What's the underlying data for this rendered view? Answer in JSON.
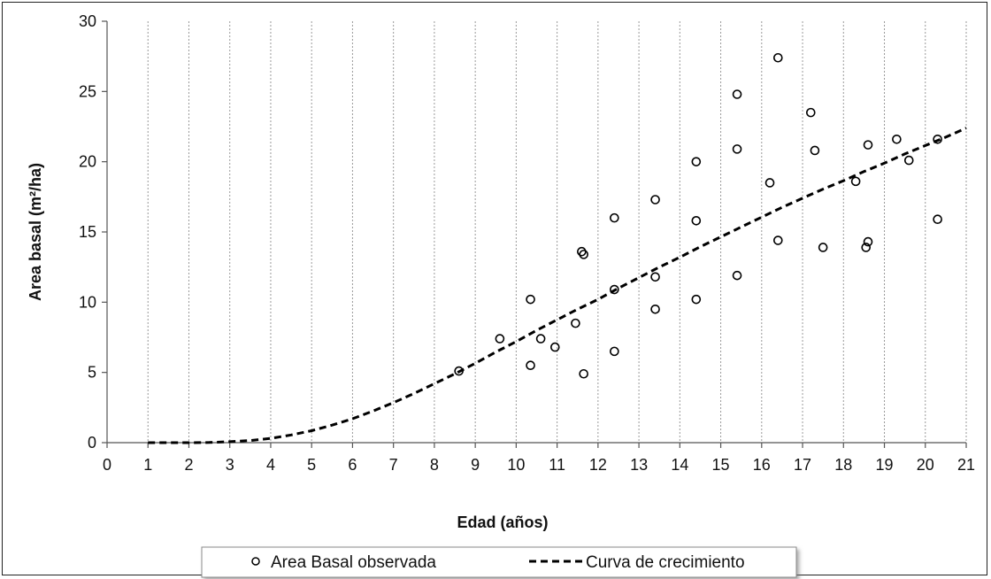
{
  "chart_data": {
    "type": "scatter",
    "xlabel": "Edad (años)",
    "ylabel": "Area basal (m²/ha)",
    "xlim": [
      0,
      21
    ],
    "ylim": [
      0,
      30
    ],
    "x_ticks": [
      "0",
      "1",
      "2",
      "3",
      "4",
      "5",
      "6",
      "7",
      "8",
      "9",
      "10",
      "11",
      "12",
      "13",
      "14",
      "15",
      "16",
      "17",
      "18",
      "19",
      "20",
      "21"
    ],
    "y_ticks": [
      "0",
      "5",
      "10",
      "15",
      "20",
      "25",
      "30"
    ],
    "grid": "vertical dashed",
    "legend_position": "bottom",
    "series": [
      {
        "name": "Area Basal observada",
        "marker": "open-circle",
        "color": "#000000",
        "points": [
          [
            8.6,
            5.1
          ],
          [
            9.6,
            7.4
          ],
          [
            10.35,
            10.2
          ],
          [
            10.35,
            5.5
          ],
          [
            10.6,
            7.4
          ],
          [
            10.95,
            6.8
          ],
          [
            11.45,
            8.5
          ],
          [
            11.6,
            13.6
          ],
          [
            11.65,
            13.4
          ],
          [
            11.65,
            4.9
          ],
          [
            12.4,
            16.0
          ],
          [
            12.4,
            10.9
          ],
          [
            12.4,
            6.5
          ],
          [
            13.4,
            17.3
          ],
          [
            13.4,
            11.8
          ],
          [
            13.4,
            9.5
          ],
          [
            14.4,
            20.0
          ],
          [
            14.4,
            15.8
          ],
          [
            14.4,
            10.2
          ],
          [
            15.4,
            24.8
          ],
          [
            15.4,
            20.9
          ],
          [
            15.4,
            11.9
          ],
          [
            16.2,
            18.5
          ],
          [
            16.4,
            27.4
          ],
          [
            16.4,
            14.4
          ],
          [
            17.2,
            23.5
          ],
          [
            17.3,
            20.8
          ],
          [
            17.5,
            13.9
          ],
          [
            18.3,
            18.6
          ],
          [
            18.55,
            13.9
          ],
          [
            18.6,
            21.2
          ],
          [
            18.6,
            14.3
          ],
          [
            19.3,
            21.6
          ],
          [
            19.6,
            20.1
          ],
          [
            20.3,
            21.6
          ],
          [
            20.3,
            15.9
          ]
        ]
      },
      {
        "name": "Curva de crecimiento",
        "style": "dashed-line",
        "color": "#000000",
        "points": [
          [
            1,
            0.0
          ],
          [
            2,
            0.0
          ],
          [
            2.5,
            0.01
          ],
          [
            3,
            0.07
          ],
          [
            3.5,
            0.15
          ],
          [
            4,
            0.3
          ],
          [
            4.5,
            0.55
          ],
          [
            5,
            0.85
          ],
          [
            5.5,
            1.25
          ],
          [
            6,
            1.7
          ],
          [
            6.5,
            2.25
          ],
          [
            7,
            2.85
          ],
          [
            7.5,
            3.5
          ],
          [
            8,
            4.2
          ],
          [
            8.5,
            4.9
          ],
          [
            9,
            5.65
          ],
          [
            9.5,
            6.45
          ],
          [
            10,
            7.2
          ],
          [
            10.5,
            8.0
          ],
          [
            11,
            8.75
          ],
          [
            11.5,
            9.5
          ],
          [
            12,
            10.2
          ],
          [
            12.5,
            11.0
          ],
          [
            13,
            11.75
          ],
          [
            13.5,
            12.5
          ],
          [
            14,
            13.2
          ],
          [
            14.5,
            13.95
          ],
          [
            15,
            14.65
          ],
          [
            15.5,
            15.35
          ],
          [
            16,
            16.05
          ],
          [
            16.5,
            16.75
          ],
          [
            17,
            17.4
          ],
          [
            17.5,
            18.05
          ],
          [
            18,
            18.65
          ],
          [
            18.5,
            19.3
          ],
          [
            19,
            19.9
          ],
          [
            19.5,
            20.55
          ],
          [
            20,
            21.15
          ],
          [
            20.5,
            21.75
          ],
          [
            21,
            22.4
          ]
        ]
      }
    ]
  }
}
